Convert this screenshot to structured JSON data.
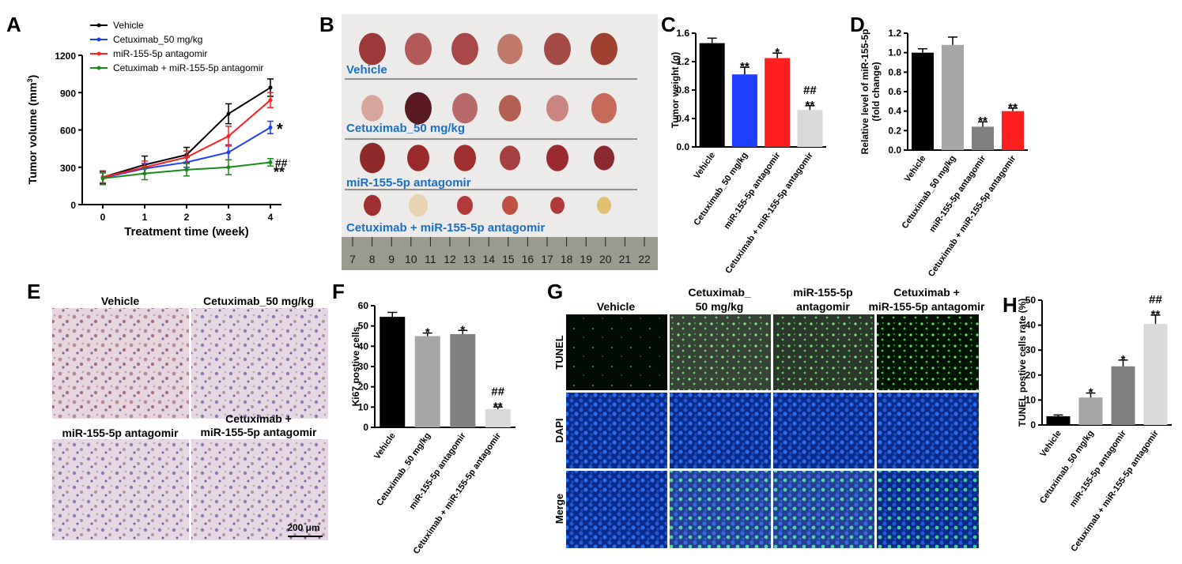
{
  "panels": {
    "A": "A",
    "B": "B",
    "C": "C",
    "D": "D",
    "E": "E",
    "F": "F",
    "G": "G",
    "H": "H"
  },
  "colors": {
    "black": "#000000",
    "blue": "#1f3fff",
    "red": "#ff1f1f",
    "green": "#1a8a1a",
    "lightgray": "#d9d9d9",
    "gray": "#a6a6a6",
    "darkgray": "#808080",
    "label_blue": "#1a6fc4"
  },
  "chart_data": [
    {
      "id": "A",
      "type": "line",
      "xlabel": "Treatment time (week)",
      "ylabel": "Tumor volume (mm",
      "ylabel_sup": "3",
      "ylabel_end": ")",
      "x": [
        0,
        1,
        2,
        3,
        4
      ],
      "xticks": [
        "0",
        "1",
        "2",
        "3",
        "4"
      ],
      "yticks": [
        "0",
        "300",
        "600",
        "900",
        "1200"
      ],
      "ylim": [
        0,
        1200
      ],
      "legend_position": "top-left",
      "series": [
        {
          "name": "Vehicle",
          "color": "#000000",
          "values": [
            220,
            320,
            400,
            730,
            940
          ],
          "err": [
            50,
            70,
            60,
            80,
            70
          ]
        },
        {
          "name": "Cetuximab_50 mg/kg",
          "color": "#1f3fff",
          "values": [
            215,
            290,
            340,
            420,
            620
          ],
          "err": [
            40,
            40,
            40,
            60,
            50
          ]
        },
        {
          "name": "miR-155-5p antagomir",
          "color": "#ff1f1f",
          "values": [
            220,
            300,
            380,
            550,
            840
          ],
          "err": [
            45,
            50,
            50,
            80,
            60
          ]
        },
        {
          "name": "Cetuximab + miR-155-5p antagomir",
          "color": "#1a8a1a",
          "values": [
            210,
            250,
            280,
            300,
            340
          ],
          "err": [
            50,
            50,
            50,
            60,
            30
          ]
        }
      ],
      "annotations": [
        {
          "text": "*",
          "series": 1
        },
        {
          "text": "##",
          "series": 3
        },
        {
          "text": "**",
          "series": 3
        }
      ]
    },
    {
      "id": "C",
      "type": "bar",
      "ylabel": "Tumor weight (g)",
      "categories": [
        "Vehicle",
        "Cetuximab_50 mg/kg",
        "miR-155-5p antagomir",
        "Cetuximab + miR-155-5p antagomir"
      ],
      "values": [
        1.46,
        1.02,
        1.25,
        0.52
      ],
      "err": [
        0.07,
        0.1,
        0.07,
        0.06
      ],
      "colors": [
        "#000000",
        "#1f3fff",
        "#ff1f1f",
        "#d9d9d9"
      ],
      "yticks": [
        "0.0",
        "0.4",
        "0.8",
        "1.2",
        "1.6"
      ],
      "ylim": [
        0,
        1.6
      ],
      "annotations": [
        [
          ""
        ],
        [
          "**"
        ],
        [
          "*"
        ],
        [
          "##",
          "**"
        ]
      ]
    },
    {
      "id": "D",
      "type": "bar",
      "ylabel": "Relative level of miR-155-5p",
      "ylabel2": "(fold change)",
      "categories": [
        "Vehicle",
        "Cetuximab_50 mg/kg",
        "miR-155-5p antagomir",
        "Cetuximab + miR-155-5p antagomir"
      ],
      "values": [
        1.0,
        1.08,
        0.24,
        0.4
      ],
      "err": [
        0.04,
        0.08,
        0.05,
        0.03
      ],
      "colors": [
        "#000000",
        "#a6a6a6",
        "#808080",
        "#ff1f1f"
      ],
      "yticks": [
        "0.0",
        "0.2",
        "0.4",
        "0.6",
        "0.8",
        "1.0",
        "1.2"
      ],
      "ylim": [
        0,
        1.2
      ],
      "annotations": [
        [
          ""
        ],
        [
          ""
        ],
        [
          "**"
        ],
        [
          "**"
        ]
      ]
    },
    {
      "id": "F",
      "type": "bar",
      "ylabel": "Ki67 postive cells",
      "categories": [
        "Vehicle",
        "Cetuximab_50 mg/kg",
        "miR-155-5p antagomir",
        "Cetuximab + miR-155-5p antagomir"
      ],
      "values": [
        54.5,
        45,
        46,
        9
      ],
      "err": [
        2.2,
        1.5,
        1.8,
        1
      ],
      "colors": [
        "#000000",
        "#a6a6a6",
        "#808080",
        "#d9d9d9"
      ],
      "yticks": [
        "0",
        "10",
        "20",
        "30",
        "40",
        "50",
        "60"
      ],
      "ylim": [
        0,
        60
      ],
      "annotations": [
        [
          ""
        ],
        [
          "*"
        ],
        [
          "*"
        ],
        [
          "##",
          "**"
        ]
      ]
    },
    {
      "id": "H",
      "type": "bar",
      "ylabel": "TUNEL postive cells rate (%)",
      "categories": [
        "Vehicle",
        "Cetuximab_50 mg/kg",
        "miR-155-5p antagomir",
        "Cetuximab + miR-155-5p antagomir"
      ],
      "values": [
        3.5,
        11,
        23.5,
        40.5
      ],
      "err": [
        0.5,
        1.8,
        2.5,
        3.5
      ],
      "colors": [
        "#000000",
        "#a6a6a6",
        "#808080",
        "#d9d9d9"
      ],
      "yticks": [
        "0",
        "10",
        "20",
        "30",
        "40",
        "50"
      ],
      "ylim": [
        0,
        50
      ],
      "annotations": [
        [
          ""
        ],
        [
          "*"
        ],
        [
          "*"
        ],
        [
          "##",
          "**"
        ]
      ]
    }
  ],
  "photo_B": {
    "groups": [
      "Vehicle",
      "Cetuximab_50 mg/kg",
      "miR-155-5p antagomir",
      "Cetuximab + miR-155-5p antagomir"
    ],
    "ruler_numbers": [
      "7",
      "8",
      "9",
      "10",
      "11",
      "12",
      "13",
      "14",
      "15",
      "16",
      "17",
      "18",
      "19",
      "20",
      "21",
      "22"
    ]
  },
  "micro_E": {
    "labels": [
      "Vehicle",
      "Cetuximab_50 mg/kg",
      "miR-155-5p antagomir",
      "Cetuximab +",
      "miR-155-5p antagomir"
    ],
    "scale": "200 μm"
  },
  "micro_G": {
    "columns": [
      "Vehicle",
      "Cetuximab_",
      "50 mg/kg",
      "miR-155-5p",
      "antagomir",
      "Cetuximab +",
      "miR-155-5p antagomir"
    ],
    "rows": [
      "TUNEL",
      "DAPI",
      "Merge"
    ]
  }
}
